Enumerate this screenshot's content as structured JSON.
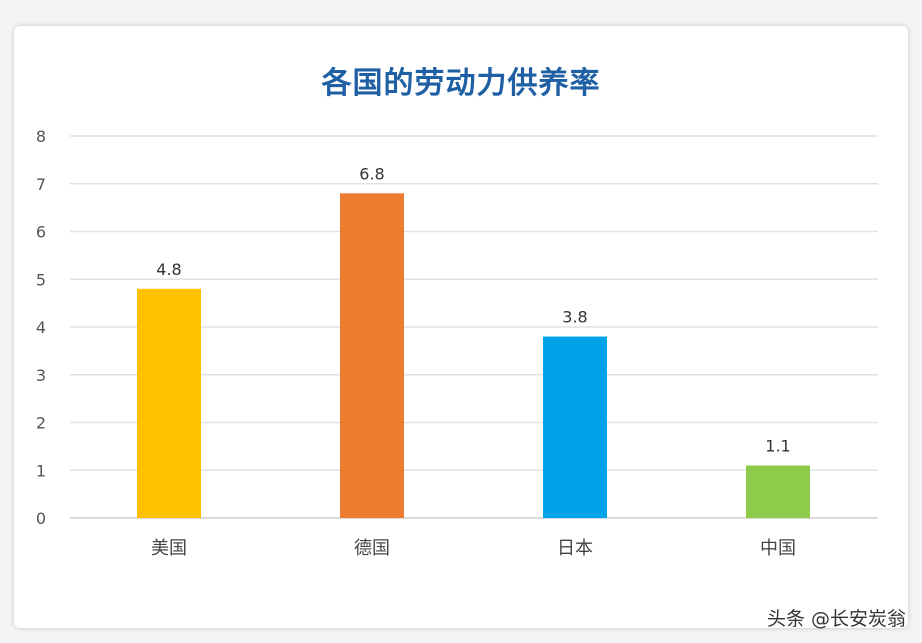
{
  "chart_data": {
    "type": "bar",
    "title": "各国的劳动力供养率",
    "categories": [
      "美国",
      "德国",
      "日本",
      "中国"
    ],
    "values": [
      4.8,
      6.8,
      3.8,
      1.1
    ],
    "value_labels": [
      "4.8",
      "6.8",
      "3.8",
      "1.1"
    ],
    "colors": [
      "#ffc000",
      "#ed7d31",
      "#00a2e8",
      "#8fcb4a"
    ],
    "ylim": [
      0,
      8
    ],
    "yticks": [
      "0",
      "1",
      "2",
      "3",
      "4",
      "5",
      "6",
      "7",
      "8"
    ],
    "grid": true,
    "legend": "none"
  },
  "watermark": "头条 @长安炭翁"
}
